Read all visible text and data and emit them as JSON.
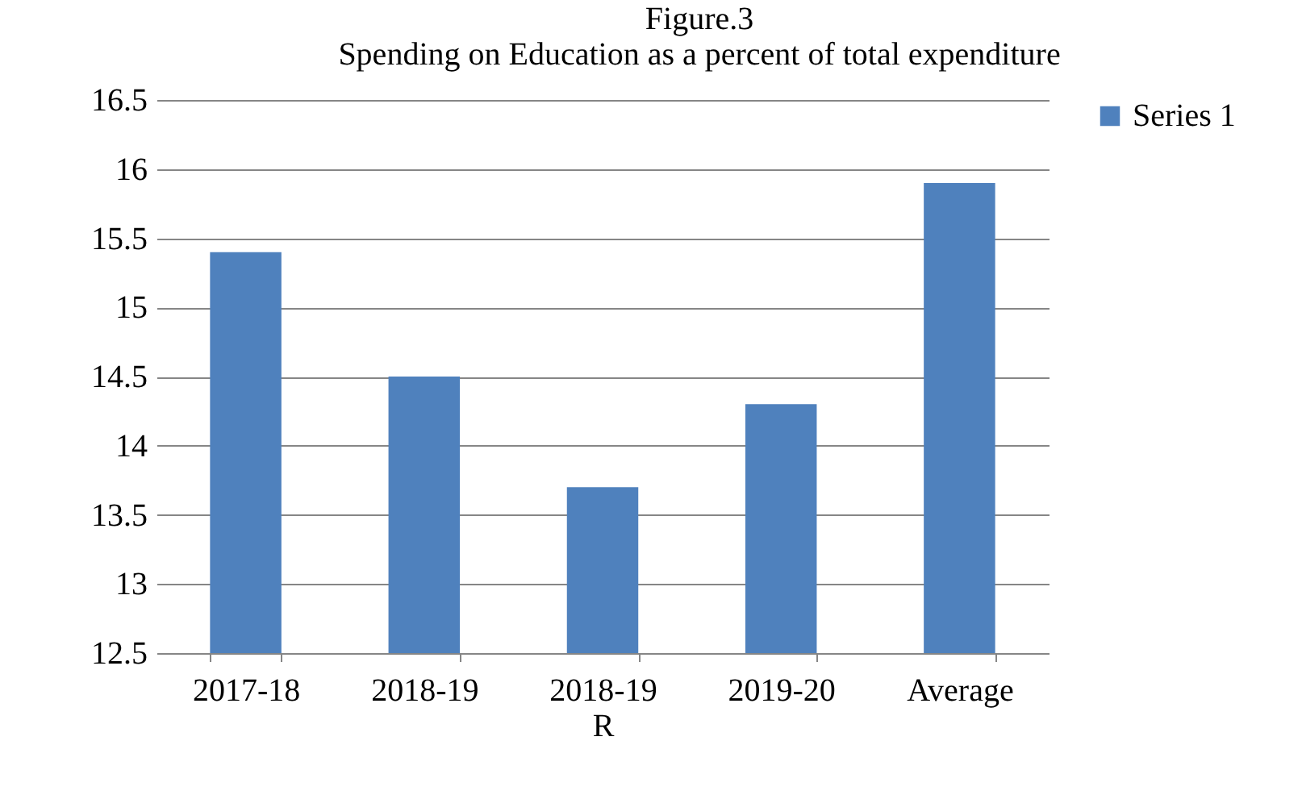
{
  "chart_data": {
    "type": "bar",
    "title": "Figure.3",
    "subtitle": "Spending on Education as a percent of total expenditure",
    "categories": [
      "2017-18",
      "2018-19",
      "2018-19 R",
      "2019-20",
      "Average"
    ],
    "series": [
      {
        "name": "Series 1",
        "color": "#4f81bd",
        "values": [
          15.4,
          14.5,
          13.7,
          14.3,
          15.9
        ]
      }
    ],
    "ylim": [
      12.5,
      16.5
    ],
    "yticks": [
      12.5,
      13,
      13.5,
      14,
      14.5,
      15,
      15.5,
      16,
      16.5
    ],
    "grid": "y",
    "legend": "right"
  }
}
